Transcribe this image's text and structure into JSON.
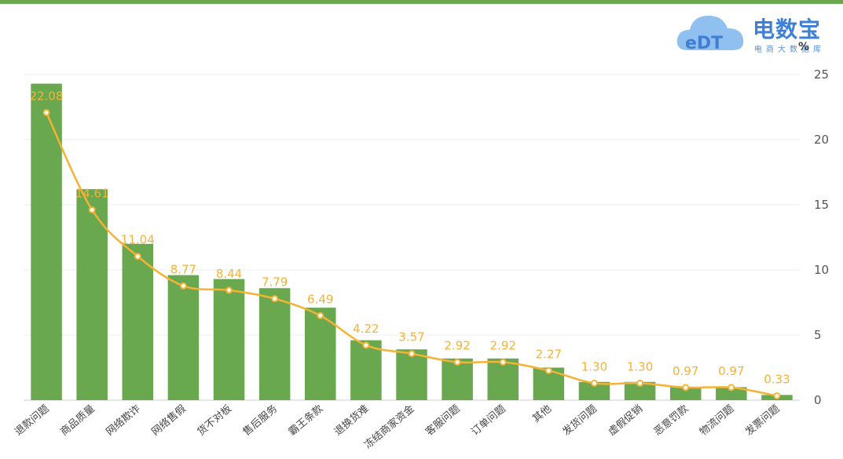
{
  "logo": {
    "brand": "电数宝",
    "tagline": "电商大数据库",
    "badge": "eDT"
  },
  "chart_data": {
    "type": "bar",
    "title": "",
    "xlabel": "",
    "ylabel": "%",
    "ylim": [
      0,
      25
    ],
    "yticks": [
      0,
      5,
      10,
      15,
      20,
      25
    ],
    "y_axis_side": "right",
    "grid": true,
    "categories": [
      "退款问题",
      "商品质量",
      "网络欺诈",
      "网络售假",
      "货不对板",
      "售后服务",
      "霸王条款",
      "退换货难",
      "冻结商家资金",
      "客服问题",
      "订单问题",
      "其他",
      "发货问题",
      "虚假促销",
      "恶意罚款",
      "物流问题",
      "发票问题"
    ],
    "series": [
      {
        "type": "bar",
        "color": "#6aa84f",
        "values": [
          24.3,
          16.2,
          12.0,
          9.6,
          9.3,
          8.6,
          7.1,
          4.6,
          3.9,
          3.2,
          3.2,
          2.5,
          1.4,
          1.4,
          1.0,
          1.0,
          0.4
        ]
      },
      {
        "type": "line",
        "color": "#f5b234",
        "values": [
          22.08,
          14.61,
          11.04,
          8.77,
          8.44,
          7.79,
          6.49,
          4.22,
          3.57,
          2.92,
          2.92,
          2.27,
          1.3,
          1.3,
          0.97,
          0.97,
          0.33
        ]
      }
    ],
    "data_labels": [
      "22.08",
      "14.61",
      "11.04",
      "8.77",
      "8.44",
      "7.79",
      "6.49",
      "4.22",
      "3.57",
      "2.92",
      "2.92",
      "2.27",
      "1.30",
      "1.30",
      "0.97",
      "0.97",
      "0.33"
    ]
  }
}
